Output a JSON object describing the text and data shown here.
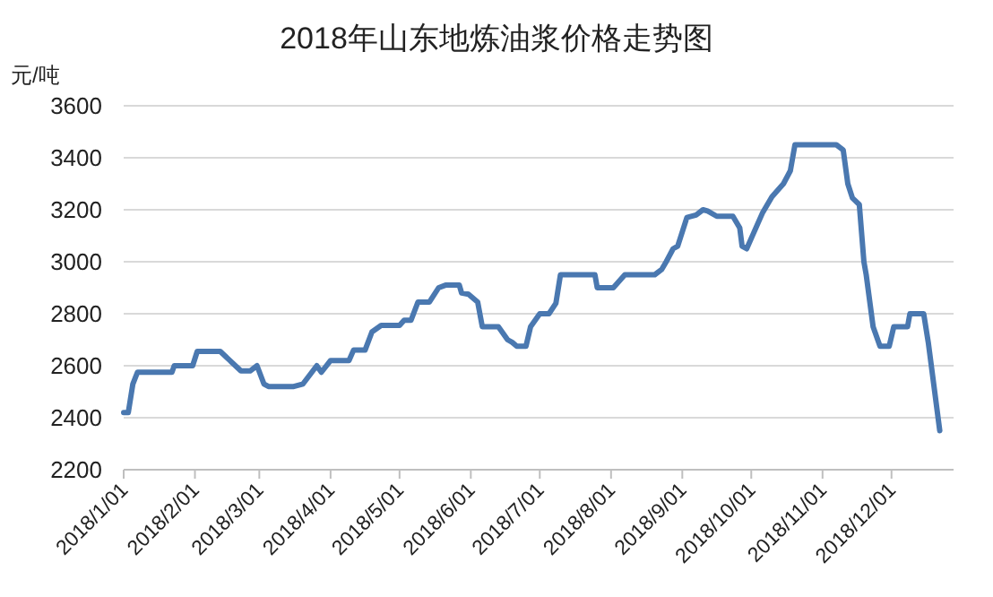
{
  "chart_data": {
    "type": "line",
    "title": "2018年山东地炼油浆价格走势图",
    "ylabel": "元/吨",
    "x": [
      "2018-01-01",
      "2018-01-03",
      "2018-01-05",
      "2018-01-07",
      "2018-01-22",
      "2018-01-23",
      "2018-01-31",
      "2018-02-02",
      "2018-02-12",
      "2018-02-21",
      "2018-02-25",
      "2018-02-28",
      "2018-03-03",
      "2018-03-05",
      "2018-03-16",
      "2018-03-20",
      "2018-03-26",
      "2018-03-28",
      "2018-04-01",
      "2018-04-09",
      "2018-04-11",
      "2018-04-16",
      "2018-04-19",
      "2018-04-23",
      "2018-05-01",
      "2018-05-03",
      "2018-05-06",
      "2018-05-09",
      "2018-05-14",
      "2018-05-18",
      "2018-05-21",
      "2018-05-27",
      "2018-05-28",
      "2018-05-31",
      "2018-06-04",
      "2018-06-06",
      "2018-06-13",
      "2018-06-17",
      "2018-06-19",
      "2018-06-21",
      "2018-06-25",
      "2018-06-27",
      "2018-07-01",
      "2018-07-05",
      "2018-07-08",
      "2018-07-10",
      "2018-07-25",
      "2018-07-26",
      "2018-08-02",
      "2018-08-07",
      "2018-08-20",
      "2018-08-23",
      "2018-08-25",
      "2018-08-28",
      "2018-08-30",
      "2018-09-03",
      "2018-09-07",
      "2018-09-10",
      "2018-09-12",
      "2018-09-16",
      "2018-09-23",
      "2018-09-26",
      "2018-09-27",
      "2018-09-29",
      "2018-10-02",
      "2018-10-06",
      "2018-10-10",
      "2018-10-13",
      "2018-10-15",
      "2018-10-18",
      "2018-10-20",
      "2018-11-07",
      "2018-11-10",
      "2018-11-12",
      "2018-11-14",
      "2018-11-17",
      "2018-11-19",
      "2018-11-20",
      "2018-11-23",
      "2018-11-26",
      "2018-11-30",
      "2018-12-02",
      "2018-12-08",
      "2018-12-09",
      "2018-12-15",
      "2018-12-17",
      "2018-12-22"
    ],
    "series": [
      {
        "color": "#4a78b0",
        "values": [
          2420,
          2420,
          2530,
          2575,
          2575,
          2600,
          2600,
          2655,
          2655,
          2580,
          2580,
          2600,
          2530,
          2520,
          2520,
          2530,
          2600,
          2575,
          2620,
          2620,
          2660,
          2660,
          2730,
          2755,
          2755,
          2775,
          2775,
          2845,
          2845,
          2900,
          2910,
          2910,
          2880,
          2875,
          2845,
          2750,
          2750,
          2700,
          2690,
          2675,
          2675,
          2750,
          2800,
          2800,
          2840,
          2950,
          2950,
          2900,
          2900,
          2950,
          2950,
          2970,
          3000,
          3050,
          3060,
          3170,
          3180,
          3200,
          3195,
          3175,
          3175,
          3130,
          3060,
          3050,
          3110,
          3190,
          3250,
          3280,
          3300,
          3350,
          3450,
          3450,
          3430,
          3300,
          3245,
          3220,
          3000,
          2950,
          2750,
          2675,
          2675,
          2750,
          2750,
          2800,
          2800,
          2690,
          2350
        ]
      }
    ],
    "xlim": [
      "2018-01-01",
      "2018-12-28"
    ],
    "xticks": [
      {
        "value": "2018-01-01",
        "label": "2018/1/01"
      },
      {
        "value": "2018-02-01",
        "label": "2018/2/01"
      },
      {
        "value": "2018-03-01",
        "label": "2018/3/01"
      },
      {
        "value": "2018-04-01",
        "label": "2018/4/01"
      },
      {
        "value": "2018-05-01",
        "label": "2018/5/01"
      },
      {
        "value": "2018-06-01",
        "label": "2018/6/01"
      },
      {
        "value": "2018-07-01",
        "label": "2018/7/01"
      },
      {
        "value": "2018-08-01",
        "label": "2018/8/01"
      },
      {
        "value": "2018-09-01",
        "label": "2018/9/01"
      },
      {
        "value": "2018-10-01",
        "label": "2018/10/01"
      },
      {
        "value": "2018-11-01",
        "label": "2018/11/01"
      },
      {
        "value": "2018-12-01",
        "label": "2018/12/01"
      }
    ],
    "ylim": [
      2200,
      3600
    ],
    "yticks": [
      2200,
      2400,
      2600,
      2800,
      3000,
      3200,
      3400,
      3600
    ],
    "grid": "y",
    "marker": "none",
    "line_style": "solid"
  }
}
